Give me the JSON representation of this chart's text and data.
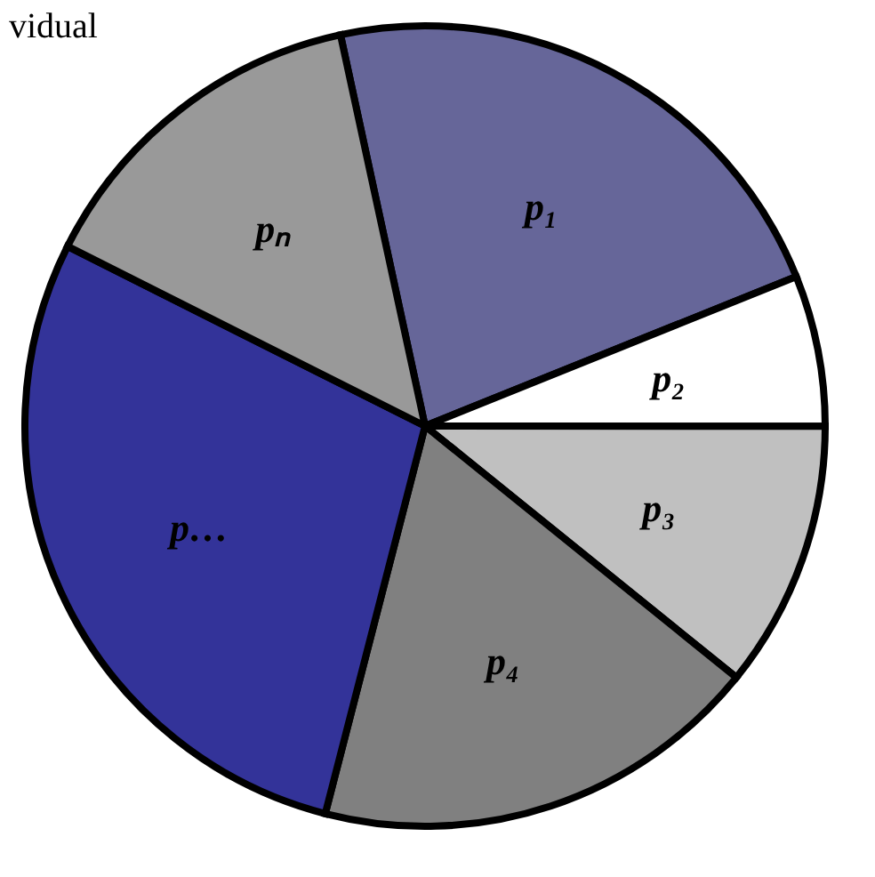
{
  "chart_data": {
    "type": "pie",
    "categories": [
      "p₁",
      "p₂",
      "p₃",
      "p₄",
      "p…",
      "pₙ"
    ],
    "values": [
      22.3,
      6.1,
      10.8,
      18.2,
      28.4,
      14.2
    ],
    "colors": [
      "#666699",
      "#ffffff",
      "#c0c0c0",
      "#808080",
      "#333399",
      "#999999"
    ],
    "annotations": [
      "vidual"
    ],
    "legend": false
  }
}
